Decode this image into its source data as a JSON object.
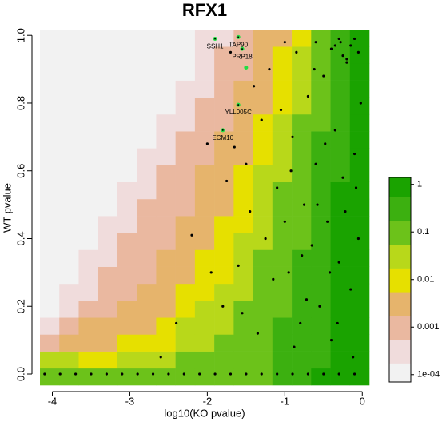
{
  "chart_data": {
    "type": "heatmap",
    "title": "RFX1",
    "x_label": "log10(KO pvalue)",
    "y_label": "WT pvalue",
    "xlim": [
      -4.16,
      0.09
    ],
    "ylim": [
      -0.033,
      1.017
    ],
    "xticks": [
      -4,
      -3,
      -2,
      -1,
      0
    ],
    "yticks": [
      {
        "value": 0,
        "label": "0.0"
      },
      0.2,
      0.4,
      0.6,
      0.8,
      {
        "value": 1,
        "label": "1.0"
      }
    ],
    "xbins": [
      -4.16,
      -3.91,
      -3.66,
      -3.41,
      -3.16,
      -2.91,
      -2.66,
      -2.41,
      -2.16,
      -1.91,
      -1.66,
      -1.41,
      -1.16,
      -0.91,
      -0.66,
      -0.41,
      -0.16,
      0.09
    ],
    "ybins": [
      -0.033,
      0.017,
      0.067,
      0.117,
      0.167,
      0.217,
      0.267,
      0.317,
      0.367,
      0.417,
      0.467,
      0.517,
      0.567,
      0.617,
      0.667,
      0.717,
      0.767,
      0.817,
      0.867,
      0.917,
      0.967,
      1.017
    ],
    "matrix": [
      [
        0.1,
        0.1,
        0.1,
        0.1,
        0.1,
        0.1,
        0.1,
        0.1,
        0.1,
        0.1,
        0.1,
        0.1,
        0.3,
        0.3,
        1,
        1,
        1
      ],
      [
        0.03,
        0.03,
        0.01,
        0.01,
        0.03,
        0.03,
        0.03,
        0.1,
        0.1,
        0.1,
        0.1,
        0.1,
        0.3,
        0.3,
        0.3,
        1,
        1
      ],
      [
        0.001,
        0.003,
        0.003,
        0.003,
        0.01,
        0.01,
        0.01,
        0.03,
        0.03,
        0.1,
        0.1,
        0.1,
        0.3,
        0.3,
        0.3,
        1,
        1
      ],
      [
        0.0003,
        0.001,
        0.003,
        0.003,
        0.003,
        0.003,
        0.01,
        0.03,
        0.03,
        0.03,
        0.1,
        0.1,
        0.3,
        0.3,
        0.3,
        1,
        1
      ],
      [
        0.0001,
        0.0003,
        0.001,
        0.001,
        0.003,
        0.003,
        0.003,
        0.01,
        0.03,
        0.03,
        0.1,
        0.1,
        0.1,
        0.3,
        0.3,
        1,
        1
      ],
      [
        0.0001,
        0.0003,
        0.0003,
        0.001,
        0.001,
        0.003,
        0.003,
        0.01,
        0.01,
        0.03,
        0.03,
        0.1,
        0.1,
        0.3,
        0.3,
        1,
        1
      ],
      [
        0.0001,
        0.0001,
        0.0003,
        0.001,
        0.001,
        0.001,
        0.003,
        0.003,
        0.01,
        0.01,
        0.03,
        0.1,
        0.1,
        0.3,
        0.3,
        1,
        1
      ],
      [
        0.0001,
        0.0001,
        0.0003,
        0.0003,
        0.001,
        0.001,
        0.003,
        0.003,
        0.01,
        0.01,
        0.03,
        0.1,
        0.1,
        0.3,
        0.3,
        1,
        1
      ],
      [
        0.0001,
        0.0001,
        0.0001,
        0.0003,
        0.001,
        0.001,
        0.001,
        0.003,
        0.003,
        0.01,
        0.03,
        0.03,
        0.1,
        0.1,
        0.3,
        1,
        1
      ],
      [
        0.0001,
        0.0001,
        0.0001,
        0.0003,
        0.0003,
        0.001,
        0.001,
        0.003,
        0.003,
        0.01,
        0.01,
        0.03,
        0.1,
        0.1,
        0.3,
        1,
        1
      ],
      [
        0.0001,
        0.0001,
        0.0001,
        0.0001,
        0.0003,
        0.001,
        0.001,
        0.001,
        0.003,
        0.003,
        0.01,
        0.03,
        0.1,
        0.1,
        0.3,
        1,
        1
      ],
      [
        0.0001,
        0.0001,
        0.0001,
        0.0001,
        0.0003,
        0.0003,
        0.001,
        0.001,
        0.003,
        0.003,
        0.01,
        0.03,
        0.1,
        0.1,
        0.3,
        1,
        1
      ],
      [
        0.0001,
        0.0001,
        0.0001,
        0.0001,
        0.0001,
        0.0003,
        0.001,
        0.001,
        0.003,
        0.003,
        0.01,
        0.03,
        0.03,
        0.1,
        0.3,
        0.3,
        1
      ],
      [
        0.0001,
        0.0001,
        0.0001,
        0.0001,
        0.0001,
        0.0003,
        0.0003,
        0.001,
        0.001,
        0.003,
        0.003,
        0.01,
        0.03,
        0.1,
        0.3,
        0.3,
        1
      ],
      [
        0.0001,
        0.0001,
        0.0001,
        0.0001,
        0.0001,
        0.0001,
        0.0003,
        0.001,
        0.001,
        0.003,
        0.003,
        0.01,
        0.03,
        0.1,
        0.3,
        0.3,
        1
      ],
      [
        0.0001,
        0.0001,
        0.0001,
        0.0001,
        0.0001,
        0.0001,
        0.0003,
        0.0003,
        0.001,
        0.001,
        0.003,
        0.01,
        0.03,
        0.1,
        0.1,
        0.3,
        1
      ],
      [
        0.0001,
        0.0001,
        0.0001,
        0.0001,
        0.0001,
        0.0001,
        0.0001,
        0.0003,
        0.001,
        0.001,
        0.003,
        0.003,
        0.01,
        0.03,
        0.1,
        0.3,
        1
      ],
      [
        0.0001,
        0.0001,
        0.0001,
        0.0001,
        0.0001,
        0.0001,
        0.0001,
        0.0003,
        0.0003,
        0.001,
        0.003,
        0.003,
        0.01,
        0.03,
        0.1,
        0.3,
        1
      ],
      [
        0.0001,
        0.0001,
        0.0001,
        0.0001,
        0.0001,
        0.0001,
        0.0001,
        0.0001,
        0.0003,
        0.001,
        0.001,
        0.003,
        0.01,
        0.03,
        0.1,
        0.3,
        1
      ],
      [
        0.0001,
        0.0001,
        0.0001,
        0.0001,
        0.0001,
        0.0001,
        0.0001,
        0.0001,
        0.0003,
        0.001,
        0.001,
        0.003,
        0.01,
        0.03,
        0.1,
        0.3,
        1
      ],
      [
        0.0001,
        0.0001,
        0.0001,
        0.0001,
        0.0001,
        0.0001,
        0.0001,
        0.0001,
        0.0003,
        0.0003,
        0.001,
        0.003,
        0.003,
        0.01,
        0.1,
        0.3,
        1
      ]
    ],
    "levels": [
      0.0001,
      0.0003,
      0.001,
      0.003,
      0.01,
      0.03,
      0.1,
      0.3,
      1
    ],
    "colors": [
      "#f2f2f2",
      "#f0dcdc",
      "#eab8a0",
      "#e6b46c",
      "#e6e000",
      "#b8d81a",
      "#6cc21a",
      "#3cb010",
      "#1aa300"
    ],
    "colorbar_lim": [
      7e-05,
      1.4
    ],
    "colorbar_ticks": [
      1,
      0.1,
      0.01,
      0.001,
      {
        "value": 0.0001,
        "label": "1e-04"
      }
    ],
    "scatter": {
      "color": "#000000",
      "x": [
        -4.1,
        -3.9,
        -3.7,
        -3.5,
        -3.3,
        -3.1,
        -2.9,
        -2.7,
        -2.5,
        -2.3,
        -2.1,
        -1.9,
        -1.7,
        -1.5,
        -1.3,
        -1.1,
        -0.9,
        -0.7,
        -0.5,
        -0.3,
        -0.1,
        -2.2,
        -1.75,
        -2.0,
        -1.65,
        -1.5,
        -1.4,
        -1.3,
        -1.2,
        -1.1,
        -1.0,
        -0.95,
        -0.9,
        -0.85,
        -0.8,
        -0.75,
        -0.7,
        -0.65,
        -0.6,
        -0.55,
        -0.5,
        -0.45,
        -0.4,
        -0.35,
        -0.3,
        -0.25,
        -0.2,
        -0.15,
        -0.1,
        -0.05,
        -0.02,
        -1.8,
        -2.4,
        -1.6,
        -1.35,
        -1.25,
        -1.15,
        -1.05,
        -0.92,
        -0.88,
        -0.78,
        -0.72,
        -0.62,
        -0.58,
        -0.48,
        -0.42,
        -0.32,
        -0.28,
        -0.22,
        -0.12,
        -0.08,
        -1.45,
        -1.55,
        -1.95,
        -2.6,
        -1.7,
        -1.0,
        -0.6,
        -0.3,
        -0.15,
        -0.05,
        -0.4,
        -0.25,
        -0.1,
        -0.2,
        -0.35
      ],
      "y": [
        0,
        0,
        0,
        0,
        0,
        0,
        0,
        0,
        0,
        0,
        0,
        0,
        0,
        0,
        0,
        0,
        0,
        0,
        0,
        0,
        0,
        0.41,
        0.57,
        0.68,
        0.67,
        0.62,
        0.85,
        0.75,
        0.9,
        0.55,
        0.45,
        0.3,
        0.7,
        0.95,
        0.15,
        0.5,
        0.82,
        0.38,
        0.62,
        0.2,
        0.88,
        0.45,
        0.1,
        0.72,
        0.33,
        0.58,
        0.92,
        0.25,
        0.65,
        0.4,
        0.8,
        0.2,
        0.15,
        0.32,
        0.12,
        0.4,
        0.28,
        0.78,
        0.6,
        0.08,
        0.35,
        0.22,
        0.9,
        0.5,
        0.68,
        0.3,
        0.15,
        0.98,
        0.48,
        0.05,
        0.55,
        0.48,
        0.18,
        0.3,
        0.05,
        0.95,
        0.98,
        0.98,
        0.99,
        0.97,
        0.95,
        0.96,
        0.94,
        0.99,
        0.93,
        0.97
      ]
    },
    "annotation_color": "#22dd44",
    "annotations": [
      {
        "label": "SSH1",
        "x": -1.9,
        "y": 0.99
      },
      {
        "label": "TAP90",
        "x": -1.6,
        "y": 0.995
      },
      {
        "label": "PRP18",
        "x": -1.55,
        "y": 0.96
      },
      {
        "label": "YLL005C",
        "x": -1.6,
        "y": 0.795
      },
      {
        "label": "ECM10",
        "x": -1.8,
        "y": 0.72
      }
    ],
    "extra_highlight": {
      "x": -1.5,
      "y": 0.905
    }
  }
}
